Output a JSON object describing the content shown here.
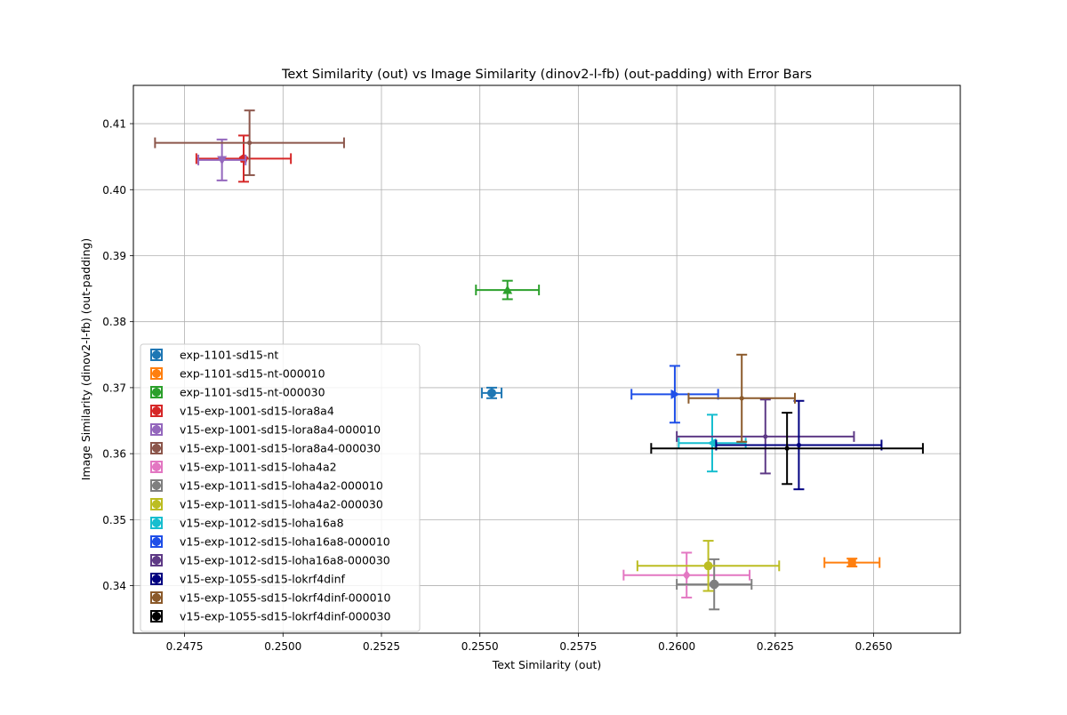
{
  "chart_data": {
    "type": "scatter",
    "title": "Text Similarity (out) vs Image Similarity (dinov2-l-fb) (out-padding) with Error Bars",
    "xlabel": "Text Similarity (out)",
    "ylabel": "Image Similarity (dinov2-l-fb) (out-padding)",
    "xlim": [
      0.2462,
      0.2672
    ],
    "ylim": [
      0.3328,
      0.4158
    ],
    "xticks": [
      "0.2475",
      "0.2500",
      "0.2525",
      "0.2550",
      "0.2575",
      "0.2600",
      "0.2625",
      "0.2650"
    ],
    "yticks": [
      "0.34",
      "0.35",
      "0.36",
      "0.37",
      "0.38",
      "0.39",
      "0.40",
      "0.41"
    ],
    "grid": true,
    "legend_position": "lower-left",
    "series": [
      {
        "name": "exp-1101-sd15-nt",
        "color": "#1f77b4",
        "marker": "circle",
        "x": 0.2553,
        "y": 0.3692,
        "xerr": 0.00025,
        "yerr": 0.0008
      },
      {
        "name": "exp-1101-sd15-nt-000010",
        "color": "#ff7f0e",
        "marker": "square",
        "x": 0.26445,
        "y": 0.3435,
        "xerr": 0.0007,
        "yerr": 0.0006
      },
      {
        "name": "exp-1101-sd15-nt-000030",
        "color": "#2ca02c",
        "marker": "triangle-up",
        "x": 0.2557,
        "y": 0.3848,
        "xerr": 0.0008,
        "yerr": 0.0014
      },
      {
        "name": "v15-exp-1001-sd15-lora8a4",
        "color": "#d62728",
        "marker": "pentagon",
        "x": 0.249,
        "y": 0.4047,
        "xerr": 0.0012,
        "yerr": 0.0035
      },
      {
        "name": "v15-exp-1001-sd15-lora8a4-000010",
        "color": "#9467bd",
        "marker": "triangle-down",
        "x": 0.24845,
        "y": 0.4045,
        "xerr": 0.0006,
        "yerr": 0.0031
      },
      {
        "name": "v15-exp-1001-sd15-lora8a4-000030",
        "color": "#8c564b",
        "marker": "point",
        "x": 0.24915,
        "y": 0.4071,
        "xerr": 0.0024,
        "yerr": 0.0049
      },
      {
        "name": "v15-exp-1011-sd15-loha4a2",
        "color": "#e377c2",
        "marker": "diamond",
        "x": 0.26025,
        "y": 0.3416,
        "xerr": 0.0016,
        "yerr": 0.0034
      },
      {
        "name": "v15-exp-1011-sd15-loha4a2-000010",
        "color": "#7f7f7f",
        "marker": "octagon",
        "x": 0.26095,
        "y": 0.3402,
        "xerr": 0.00095,
        "yerr": 0.0038
      },
      {
        "name": "v15-exp-1011-sd15-loha4a2-000030",
        "color": "#bcbd22",
        "marker": "circle",
        "x": 0.2608,
        "y": 0.343,
        "xerr": 0.0018,
        "yerr": 0.0038
      },
      {
        "name": "v15-exp-1012-sd15-loha16a8",
        "color": "#17becf",
        "marker": "triangle-left",
        "x": 0.2609,
        "y": 0.3616,
        "xerr": 0.00085,
        "yerr": 0.0043
      },
      {
        "name": "v15-exp-1012-sd15-loha16a8-000010",
        "color": "#1f4fe8",
        "marker": "triangle-right",
        "x": 0.25995,
        "y": 0.369,
        "xerr": 0.0011,
        "yerr": 0.0043
      },
      {
        "name": "v15-exp-1012-sd15-loha16a8-000030",
        "color": "#5e3a86",
        "marker": "point",
        "x": 0.26225,
        "y": 0.3626,
        "xerr": 0.00225,
        "yerr": 0.0056
      },
      {
        "name": "v15-exp-1055-sd15-lokrf4dinf",
        "color": "#000080",
        "marker": "point",
        "x": 0.2631,
        "y": 0.3613,
        "xerr": 0.0021,
        "yerr": 0.0067
      },
      {
        "name": "v15-exp-1055-sd15-lokrf4dinf-000010",
        "color": "#8b5a2b",
        "marker": "point",
        "x": 0.26165,
        "y": 0.3684,
        "xerr": 0.00135,
        "yerr": 0.0066
      },
      {
        "name": "v15-exp-1055-sd15-lokrf4dinf-000030",
        "color": "#000000",
        "marker": "point",
        "x": 0.2628,
        "y": 0.3608,
        "xerr": 0.00345,
        "yerr": 0.0054
      }
    ]
  }
}
